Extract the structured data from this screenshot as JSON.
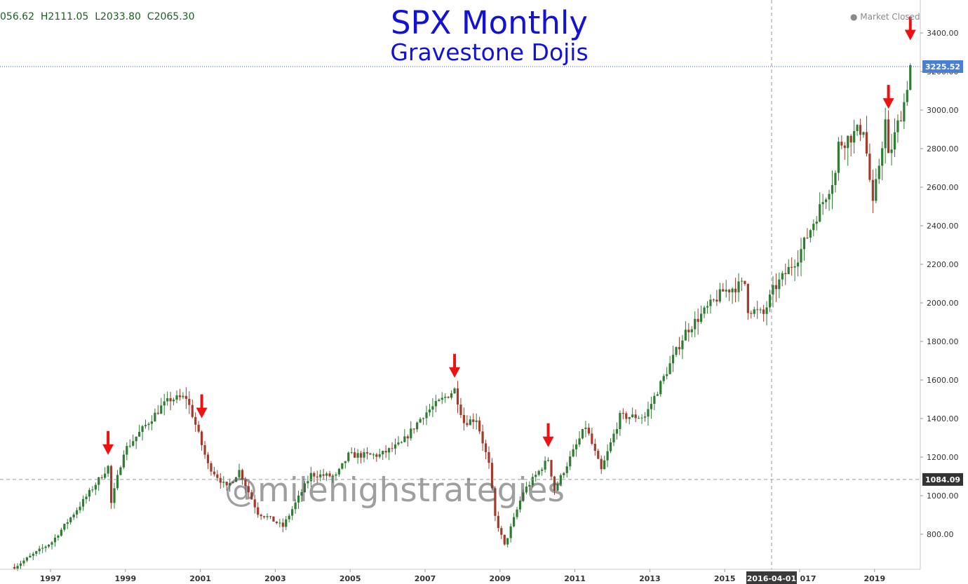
{
  "header": {
    "ohlc_text": "056.62  H2111.05  L2033.80  C2065.30",
    "market_status": "Market Closed"
  },
  "watermark": "@milehighstrategies",
  "colors": {
    "up": "#2e7d32",
    "down": "#a33a2a",
    "arrow": "#ee1111",
    "title": "#1212d6",
    "price_badge": "#4a7fd6"
  },
  "chart_data": {
    "type": "candlestick",
    "title": "SPX Monthly",
    "subtitle": "Gravestone Dojis",
    "ylim": [
      640,
      3450
    ],
    "y_ticks": [
      800,
      1000,
      1200,
      1400,
      1600,
      1800,
      2000,
      2200,
      2400,
      2600,
      2800,
      3000,
      3200,
      3400
    ],
    "y_tick_labels": [
      "800.00",
      "1000.00",
      "1200.00",
      "1400.00",
      "1600.00",
      "1800.00",
      "2000.00",
      "2200.00",
      "2400.00",
      "2600.00",
      "2800.00",
      "3000.00",
      "3200.00",
      "3400.00"
    ],
    "x_labels": [
      {
        "year": 1997,
        "label": "1997"
      },
      {
        "year": 1999,
        "label": "1999"
      },
      {
        "year": 2001,
        "label": "2001"
      },
      {
        "year": 2003,
        "label": "2003"
      },
      {
        "year": 2005,
        "label": "2005"
      },
      {
        "year": 2007,
        "label": "2007"
      },
      {
        "year": 2009,
        "label": "2009"
      },
      {
        "year": 2011,
        "label": "2011"
      },
      {
        "year": 2013,
        "label": "2013"
      },
      {
        "year": 2015,
        "label": "2015"
      },
      {
        "year": 2017,
        "label": "017"
      },
      {
        "year": 2019,
        "label": "2019"
      }
    ],
    "crosshair": {
      "date": "2016-04-01",
      "price": 1084.09,
      "price_label": "1084.09"
    },
    "last_price": {
      "value": 3225.52,
      "label": "3225.52"
    },
    "gravestone_doji_markers": [
      {
        "date": "1998-07",
        "price": 1190
      },
      {
        "date": "2001-01",
        "price": 1380
      },
      {
        "date": "2007-10",
        "price": 1590
      },
      {
        "date": "2010-04",
        "price": 1230
      },
      {
        "date": "2019-05",
        "price": 2985
      },
      {
        "date": "2019-12",
        "price": 3340
      }
    ],
    "monthly_close_anchors": [
      {
        "date": "1996-01",
        "close": 630
      },
      {
        "date": "1997-01",
        "close": 760
      },
      {
        "date": "1997-10",
        "close": 950
      },
      {
        "date": "1998-07",
        "close": 1150
      },
      {
        "date": "1998-08",
        "close": 960
      },
      {
        "date": "1998-12",
        "close": 1230
      },
      {
        "date": "1999-12",
        "close": 1460
      },
      {
        "date": "2000-03",
        "close": 1500
      },
      {
        "date": "2000-08",
        "close": 1510
      },
      {
        "date": "2000-10",
        "close": 1420
      },
      {
        "date": "2001-03",
        "close": 1160
      },
      {
        "date": "2001-09",
        "close": 1040
      },
      {
        "date": "2002-01",
        "close": 1130
      },
      {
        "date": "2002-07",
        "close": 910
      },
      {
        "date": "2002-10",
        "close": 890
      },
      {
        "date": "2003-03",
        "close": 840
      },
      {
        "date": "2003-12",
        "close": 1110
      },
      {
        "date": "2004-08",
        "close": 1100
      },
      {
        "date": "2004-12",
        "close": 1210
      },
      {
        "date": "2005-10",
        "close": 1210
      },
      {
        "date": "2006-05",
        "close": 1270
      },
      {
        "date": "2006-12",
        "close": 1420
      },
      {
        "date": "2007-10",
        "close": 1550
      },
      {
        "date": "2008-01",
        "close": 1380
      },
      {
        "date": "2008-05",
        "close": 1400
      },
      {
        "date": "2008-09",
        "close": 1160
      },
      {
        "date": "2008-11",
        "close": 890
      },
      {
        "date": "2009-02",
        "close": 740
      },
      {
        "date": "2009-08",
        "close": 1020
      },
      {
        "date": "2010-04",
        "close": 1190
      },
      {
        "date": "2010-06",
        "close": 1030
      },
      {
        "date": "2011-04",
        "close": 1360
      },
      {
        "date": "2011-09",
        "close": 1130
      },
      {
        "date": "2012-03",
        "close": 1410
      },
      {
        "date": "2012-11",
        "close": 1410
      },
      {
        "date": "2013-12",
        "close": 1850
      },
      {
        "date": "2014-12",
        "close": 2060
      },
      {
        "date": "2015-07",
        "close": 2100
      },
      {
        "date": "2015-08",
        "close": 1970
      },
      {
        "date": "2016-01",
        "close": 1940
      },
      {
        "date": "2016-04",
        "close": 2065
      },
      {
        "date": "2016-12",
        "close": 2240
      },
      {
        "date": "2017-12",
        "close": 2670
      },
      {
        "date": "2018-01",
        "close": 2820
      },
      {
        "date": "2018-09",
        "close": 2910
      },
      {
        "date": "2018-12",
        "close": 2500
      },
      {
        "date": "2019-04",
        "close": 2940
      },
      {
        "date": "2019-05",
        "close": 2750
      },
      {
        "date": "2019-10",
        "close": 3040
      },
      {
        "date": "2019-12",
        "close": 3230
      }
    ]
  }
}
